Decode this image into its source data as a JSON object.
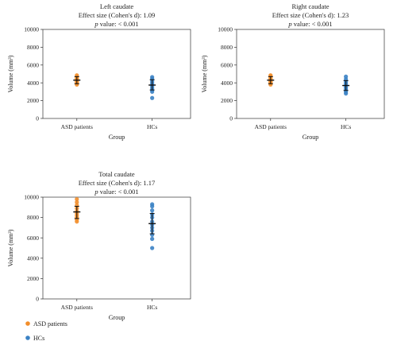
{
  "colors": {
    "asd": "#f28e2b",
    "hc": "#3b82c4",
    "error_bar": "#111111"
  },
  "legend": {
    "items": [
      {
        "label": "ASD patients",
        "color": "#f28e2b"
      },
      {
        "label": "HCs",
        "color": "#3b82c4"
      }
    ]
  },
  "chart_data": [
    {
      "type": "scatter",
      "title": "Left caudate",
      "subtitle": "Effect size (Cohen's d): 1.09",
      "p_prefix": "p",
      "p_value": " value: < 0.001",
      "xlabel": "Group",
      "ylabel": "Volume (mm³)",
      "categories": [
        "ASD patients",
        "HCs"
      ],
      "ylim": [
        0,
        10000
      ],
      "yticks": [
        "0",
        "2000",
        "4000",
        "6000",
        "8000",
        "10000"
      ],
      "grid": false,
      "series": [
        {
          "name": "ASD patients",
          "category": "ASD patients",
          "values": [
            3800,
            3950,
            4050,
            4150,
            4250,
            4350,
            4450,
            4550,
            4700,
            4850
          ],
          "mean": 4300,
          "err_low": 3900,
          "err_high": 4700
        },
        {
          "name": "HCs",
          "category": "HCs",
          "values": [
            2300,
            3000,
            3200,
            3400,
            3600,
            3800,
            4000,
            4200,
            4450,
            4650
          ],
          "mean": 3750,
          "err_low": 3200,
          "err_high": 4350
        }
      ]
    },
    {
      "type": "scatter",
      "title": "Right caudate",
      "subtitle": "Effect size (Cohen's d): 1.23",
      "p_prefix": "p",
      "p_value": " value: < 0.001",
      "xlabel": "Group",
      "ylabel": "Volume (mm³)",
      "categories": [
        "ASD patients",
        "HCs"
      ],
      "ylim": [
        0,
        10000
      ],
      "yticks": [
        "0",
        "2000",
        "4000",
        "6000",
        "8000",
        "10000"
      ],
      "grid": false,
      "series": [
        {
          "name": "ASD patients",
          "category": "ASD patients",
          "values": [
            3800,
            3950,
            4050,
            4150,
            4250,
            4350,
            4450,
            4600,
            4750,
            4850
          ],
          "mean": 4300,
          "err_low": 3900,
          "err_high": 4700
        },
        {
          "name": "HCs",
          "category": "HCs",
          "values": [
            2800,
            3000,
            3200,
            3400,
            3550,
            3750,
            3950,
            4150,
            4400,
            4700
          ],
          "mean": 3700,
          "err_low": 3150,
          "err_high": 4250
        }
      ]
    },
    {
      "type": "scatter",
      "title": "Total caudate",
      "subtitle": "Effect size (Cohen's d): 1.17",
      "p_prefix": "p",
      "p_value": " value: < 0.001",
      "xlabel": "Group",
      "ylabel": "Volume (mm³)",
      "categories": [
        "ASD patients",
        "HCs"
      ],
      "ylim": [
        0,
        10000
      ],
      "yticks": [
        "0",
        "2000",
        "4000",
        "6000",
        "8000",
        "10000"
      ],
      "grid": false,
      "series": [
        {
          "name": "ASD patients",
          "category": "ASD patients",
          "values": [
            7600,
            7800,
            8000,
            8200,
            8400,
            8600,
            8900,
            9200,
            9500,
            9800
          ],
          "mean": 8550,
          "err_low": 7900,
          "err_high": 9100
        },
        {
          "name": "HCs",
          "category": "HCs",
          "values": [
            5000,
            5900,
            6300,
            6700,
            7000,
            7300,
            7600,
            8000,
            8300,
            8700,
            9100,
            9300
          ],
          "mean": 7400,
          "err_low": 6400,
          "err_high": 8400
        }
      ]
    }
  ]
}
